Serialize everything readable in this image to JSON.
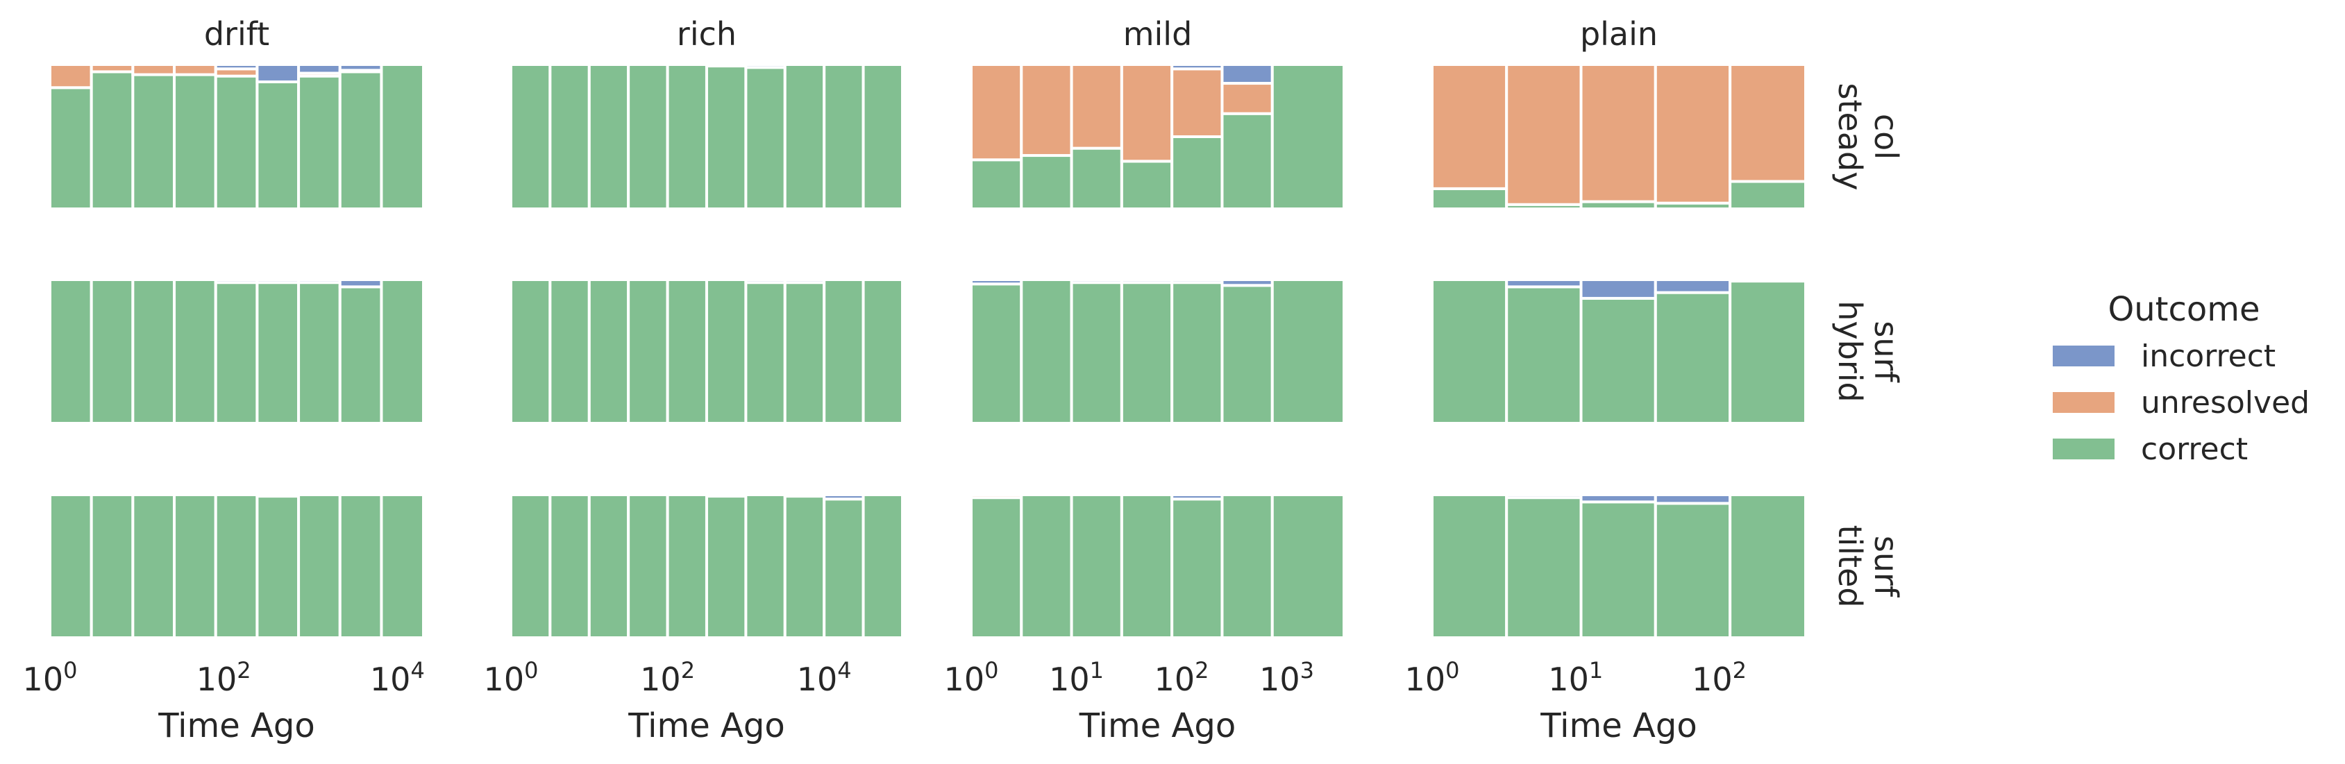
{
  "chart_data": {
    "type": "bar",
    "stacked": true,
    "normalized": true,
    "x_scale": "log",
    "xlabel": "Time Ago",
    "legend": {
      "title": "Outcome",
      "placement": "right",
      "entries": [
        {
          "label": "incorrect",
          "color": "#7b96c9"
        },
        {
          "label": "unresolved",
          "color": "#e7a57f"
        },
        {
          "label": "correct",
          "color": "#82bf91"
        }
      ]
    },
    "columns": [
      {
        "title": "drift",
        "xlim": [
          1,
          20000
        ],
        "edges": [
          1,
          3,
          9,
          27,
          81,
          243,
          729,
          2187,
          6561,
          19683
        ],
        "ticks": [
          {
            "base": "10",
            "exp": "0",
            "value": 1
          },
          {
            "base": "10",
            "exp": "2",
            "value": 100
          },
          {
            "base": "10",
            "exp": "4",
            "value": 10000
          }
        ]
      },
      {
        "title": "rich",
        "xlim": [
          1,
          100000
        ],
        "edges": [
          1,
          3.16,
          10,
          31.6,
          100,
          316,
          1000,
          3160,
          10000,
          31600,
          100000
        ],
        "ticks": [
          {
            "base": "10",
            "exp": "0",
            "value": 1
          },
          {
            "base": "10",
            "exp": "2",
            "value": 100
          },
          {
            "base": "10",
            "exp": "4",
            "value": 10000
          }
        ]
      },
      {
        "title": "mild",
        "xlim": [
          1,
          3500
        ],
        "edges": [
          1,
          3,
          9,
          27,
          81,
          243,
          729,
          2187
        ],
        "ticks": [
          {
            "base": "10",
            "exp": "0",
            "value": 1
          },
          {
            "base": "10",
            "exp": "1",
            "value": 10
          },
          {
            "base": "10",
            "exp": "2",
            "value": 100
          },
          {
            "base": "10",
            "exp": "3",
            "value": 1000
          }
        ]
      },
      {
        "title": "plain",
        "xlim": [
          1,
          400
        ],
        "edges": [
          1,
          3.3,
          10.9,
          36,
          119,
          393
        ],
        "ticks": [
          {
            "base": "10",
            "exp": "0",
            "value": 1
          },
          {
            "base": "10",
            "exp": "1",
            "value": 10
          },
          {
            "base": "10",
            "exp": "2",
            "value": 100
          }
        ]
      }
    ],
    "rows": [
      {
        "label_lines": [
          "col",
          "steady"
        ]
      },
      {
        "label_lines": [
          "surf",
          "hybrid"
        ]
      },
      {
        "label_lines": [
          "surf",
          "tilted"
        ]
      }
    ],
    "panels": [
      [
        {
          "incorrect": [
            0,
            0,
            0,
            0,
            0.03,
            0.12,
            0.06,
            0.04,
            0
          ],
          "unresolved": [
            0.16,
            0.05,
            0.07,
            0.07,
            0.05,
            0,
            0.02,
            0.01,
            0
          ],
          "correct": [
            0.84,
            0.95,
            0.93,
            0.93,
            0.92,
            0.88,
            0.92,
            0.95,
            1
          ]
        },
        {
          "incorrect": [
            0,
            0,
            0,
            0,
            0,
            0.01,
            0.02,
            0,
            0,
            0
          ],
          "unresolved": [
            0,
            0,
            0,
            0,
            0,
            0,
            0,
            0,
            0,
            0
          ],
          "correct": [
            1,
            1,
            1,
            1,
            1,
            0.99,
            0.98,
            1,
            1,
            1
          ]
        },
        {
          "incorrect": [
            0,
            0,
            0,
            0,
            0.03,
            0.13,
            0
          ],
          "unresolved": [
            0.66,
            0.63,
            0.58,
            0.67,
            0.47,
            0.21,
            0
          ],
          "correct": [
            0.34,
            0.37,
            0.42,
            0.33,
            0.5,
            0.66,
            1
          ]
        },
        {
          "incorrect": [
            0,
            0,
            0,
            0,
            0
          ],
          "unresolved": [
            0.86,
            0.97,
            0.95,
            0.96,
            0.81
          ],
          "correct": [
            0.14,
            0.03,
            0.05,
            0.04,
            0.19
          ]
        }
      ],
      [
        {
          "incorrect": [
            0,
            0,
            0,
            0,
            0.02,
            0.02,
            0.02,
            0.05,
            0
          ],
          "unresolved": [
            0,
            0,
            0,
            0,
            0,
            0,
            0,
            0,
            0
          ],
          "correct": [
            1,
            1,
            1,
            1,
            0.98,
            0.98,
            0.98,
            0.95,
            1
          ]
        },
        {
          "incorrect": [
            0,
            0,
            0,
            0,
            0,
            0,
            0.02,
            0.02,
            0,
            0
          ],
          "unresolved": [
            0,
            0,
            0,
            0,
            0,
            0,
            0,
            0,
            0,
            0
          ],
          "correct": [
            1,
            1,
            1,
            1,
            1,
            1,
            0.98,
            0.98,
            1,
            1
          ]
        },
        {
          "incorrect": [
            0.03,
            0,
            0.02,
            0.02,
            0.02,
            0.04,
            0
          ],
          "unresolved": [
            0,
            0,
            0,
            0,
            0,
            0,
            0
          ],
          "correct": [
            0.97,
            1,
            0.98,
            0.98,
            0.98,
            0.96,
            1
          ]
        },
        {
          "incorrect": [
            0,
            0.05,
            0.13,
            0.09,
            0.01
          ],
          "unresolved": [
            0,
            0,
            0,
            0,
            0
          ],
          "correct": [
            1,
            0.95,
            0.87,
            0.91,
            0.99
          ]
        }
      ],
      [
        {
          "incorrect": [
            0,
            0,
            0,
            0,
            0,
            0.01,
            0,
            0,
            0
          ],
          "unresolved": [
            0,
            0,
            0,
            0,
            0,
            0,
            0,
            0,
            0
          ],
          "correct": [
            1,
            1,
            1,
            1,
            1,
            0.99,
            1,
            1,
            1
          ]
        },
        {
          "incorrect": [
            0,
            0,
            0,
            0,
            0,
            0,
            0,
            0.01,
            0.03,
            0
          ],
          "unresolved": [
            0,
            0,
            0,
            0,
            0,
            0,
            0,
            0,
            0,
            0
          ],
          "correct": [
            1,
            1,
            1,
            1,
            1,
            0.99,
            1,
            0.99,
            0.97,
            1
          ]
        },
        {
          "incorrect": [
            0,
            0,
            0,
            0,
            0.03,
            0,
            0
          ],
          "unresolved": [
            0.02,
            0,
            0,
            0,
            0,
            0,
            0
          ],
          "correct": [
            0.98,
            1,
            1,
            1,
            0.97,
            1,
            1
          ]
        },
        {
          "incorrect": [
            0,
            0.02,
            0.05,
            0.06,
            0
          ],
          "unresolved": [
            0,
            0,
            0,
            0,
            0
          ],
          "correct": [
            1,
            0.98,
            0.95,
            0.94,
            1
          ]
        }
      ]
    ]
  }
}
